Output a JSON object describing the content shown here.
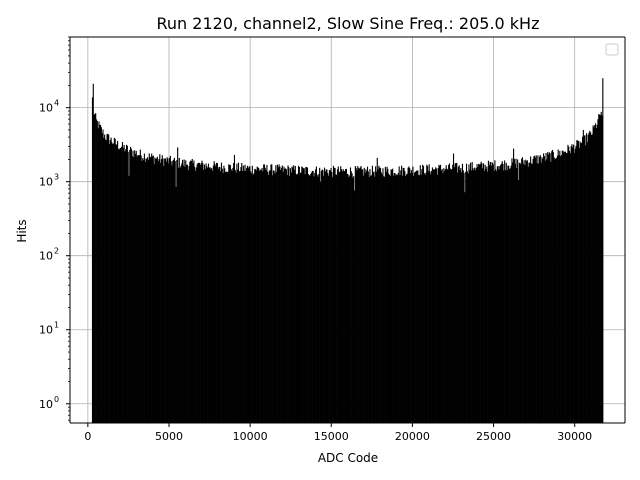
{
  "chart_data": {
    "type": "bar",
    "title": "Run 2120, channel2, Slow Sine Freq.: 205.0 kHz",
    "xlabel": "ADC Code",
    "ylabel": "Hits",
    "xlim": [
      -1100,
      33100
    ],
    "ylim": [
      0.55,
      90000
    ],
    "yscale": "log",
    "grid": true,
    "legend": "top-right",
    "legend_entries": [],
    "bar_color": "#000000",
    "x_ticks": [
      "0",
      "5000",
      "10000",
      "15000",
      "20000",
      "25000",
      "30000"
    ],
    "x_tick_values": [
      0,
      5000,
      10000,
      15000,
      20000,
      25000,
      30000
    ],
    "y_ticks": [
      "10^0",
      "10^1",
      "10^2",
      "10^3",
      "10^4"
    ],
    "y_tick_values": [
      1,
      10,
      100,
      1000,
      10000
    ],
    "x_range": [
      250,
      31750
    ],
    "bin_width": 50,
    "envelope": [
      {
        "x": 250,
        "y": 13000
      },
      {
        "x": 300,
        "y": 9500
      },
      {
        "x": 500,
        "y": 6500
      },
      {
        "x": 1000,
        "y": 4200
      },
      {
        "x": 1500,
        "y": 3500
      },
      {
        "x": 2000,
        "y": 3000
      },
      {
        "x": 3000,
        "y": 2400
      },
      {
        "x": 4000,
        "y": 2100
      },
      {
        "x": 5000,
        "y": 1900
      },
      {
        "x": 6000,
        "y": 1750
      },
      {
        "x": 8000,
        "y": 1600
      },
      {
        "x": 10000,
        "y": 1500
      },
      {
        "x": 12000,
        "y": 1450
      },
      {
        "x": 14000,
        "y": 1400
      },
      {
        "x": 16000,
        "y": 1380
      },
      {
        "x": 18000,
        "y": 1400
      },
      {
        "x": 20000,
        "y": 1450
      },
      {
        "x": 22000,
        "y": 1500
      },
      {
        "x": 24000,
        "y": 1600
      },
      {
        "x": 26000,
        "y": 1750
      },
      {
        "x": 27000,
        "y": 1900
      },
      {
        "x": 28000,
        "y": 2100
      },
      {
        "x": 29000,
        "y": 2400
      },
      {
        "x": 30000,
        "y": 3000
      },
      {
        "x": 30500,
        "y": 3500
      },
      {
        "x": 31000,
        "y": 4500
      },
      {
        "x": 31400,
        "y": 6500
      },
      {
        "x": 31600,
        "y": 9000
      },
      {
        "x": 31750,
        "y": 4000
      }
    ],
    "spikes": [
      {
        "x": 300,
        "y": 21000
      },
      {
        "x": 31700,
        "y": 25000
      },
      {
        "x": 5500,
        "y": 2900
      },
      {
        "x": 9000,
        "y": 2300
      },
      {
        "x": 17800,
        "y": 2100
      },
      {
        "x": 22500,
        "y": 2400
      },
      {
        "x": 26200,
        "y": 2800
      },
      {
        "x": 30500,
        "y": 5000
      }
    ],
    "dips": [
      {
        "x": 2500,
        "y": 1200
      },
      {
        "x": 5400,
        "y": 850
      },
      {
        "x": 14300,
        "y": 1000
      },
      {
        "x": 16400,
        "y": 760
      },
      {
        "x": 23200,
        "y": 720
      },
      {
        "x": 26500,
        "y": 1050
      }
    ]
  }
}
